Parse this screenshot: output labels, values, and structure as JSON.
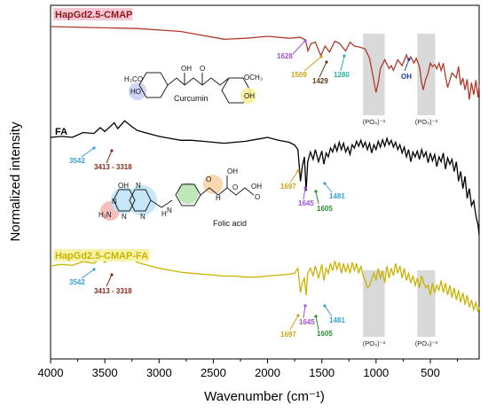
{
  "chart_data": {
    "type": "line",
    "xlabel": "Wavenumber (cm⁻¹)",
    "ylabel": "Normalized intensity",
    "xlim": [
      4000,
      50
    ],
    "x_reversed": true,
    "x_ticks": [
      "4000",
      "3500",
      "3000",
      "2500",
      "2000",
      "1500",
      "1000",
      "500"
    ],
    "grid": false,
    "series": [
      {
        "name": "HapGd2.5-CMAP",
        "color": "#b03a2e",
        "label_bg": "#f7c7d6",
        "x": [
          4000,
          3600,
          3200,
          2800,
          2400,
          2200,
          2000,
          1800,
          1700,
          1650,
          1628,
          1600,
          1560,
          1509,
          1470,
          1429,
          1380,
          1340,
          1280,
          1240,
          1200,
          1150,
          1100,
          1060,
          1030,
          1000,
          980,
          960,
          920,
          880,
          860,
          840,
          800,
          760,
          720,
          700,
          680,
          650,
          630,
          600,
          580,
          565,
          545,
          520,
          500,
          480,
          460,
          440,
          420,
          400,
          380,
          360,
          340,
          300,
          260,
          240,
          220,
          200,
          180,
          160,
          140,
          120,
          100,
          80,
          60,
          50
        ],
        "y": [
          0.1,
          0.12,
          0.14,
          0.2,
          0.36,
          0.34,
          0.3,
          0.34,
          0.32,
          0.37,
          0.6,
          0.45,
          0.42,
          0.7,
          0.5,
          0.62,
          0.4,
          0.44,
          0.6,
          0.42,
          0.5,
          0.52,
          0.56,
          0.75,
          1.1,
          1.45,
          1.25,
          0.96,
          0.78,
          0.96,
          0.9,
          1.0,
          0.78,
          0.9,
          0.68,
          0.8,
          0.72,
          0.85,
          0.75,
          0.92,
          1.25,
          1.4,
          1.2,
          1.05,
          0.85,
          0.92,
          0.88,
          0.97,
          0.85,
          1.0,
          0.85,
          1.12,
          1.35,
          1.05,
          1.15,
          0.92,
          1.3,
          1.15,
          1.4,
          1.18,
          1.6,
          1.25,
          1.5,
          1.2,
          1.55,
          1.3
        ]
      },
      {
        "name": "FA",
        "color": "#000000",
        "x": [
          4000,
          3900,
          3800,
          3700,
          3600,
          3542,
          3500,
          3413,
          3380,
          3318,
          3250,
          3200,
          3100,
          3000,
          2900,
          2800,
          2700,
          2600,
          2500,
          2400,
          2300,
          2200,
          2100,
          2000,
          1900,
          1800,
          1750,
          1720,
          1697,
          1680,
          1660,
          1645,
          1630,
          1605,
          1580,
          1560,
          1530,
          1500,
          1481,
          1460,
          1440,
          1420,
          1400,
          1380,
          1360,
          1340,
          1320,
          1300,
          1280,
          1260,
          1240,
          1220,
          1200,
          1180,
          1160,
          1140,
          1120,
          1100,
          1080,
          1060,
          1040,
          1020,
          1000,
          980,
          960,
          940,
          920,
          900,
          880,
          860,
          840,
          820,
          800,
          780,
          760,
          740,
          720,
          700,
          680,
          660,
          640,
          620,
          600,
          580,
          560,
          540,
          520,
          500,
          480,
          460,
          440,
          420,
          400,
          380,
          360,
          340,
          320,
          300,
          280,
          260,
          240,
          220,
          200,
          180,
          160,
          140,
          120,
          100,
          80,
          60,
          50
        ],
        "y": [
          4.3,
          4.28,
          4.3,
          4.2,
          4.22,
          4.1,
          4.18,
          4.0,
          4.12,
          3.96,
          4.08,
          4.16,
          4.22,
          4.28,
          4.32,
          4.36,
          4.36,
          4.38,
          4.4,
          4.42,
          4.4,
          4.38,
          4.34,
          4.3,
          4.36,
          4.4,
          4.46,
          4.55,
          5.2,
          4.9,
          4.7,
          5.4,
          4.8,
          4.6,
          4.75,
          4.55,
          4.8,
          4.58,
          4.85,
          4.62,
          4.7,
          4.52,
          4.6,
          4.45,
          4.58,
          4.4,
          4.55,
          4.42,
          4.6,
          4.5,
          4.65,
          4.45,
          4.52,
          4.38,
          4.48,
          4.36,
          4.5,
          4.4,
          4.55,
          4.42,
          4.62,
          4.45,
          4.55,
          4.38,
          4.5,
          4.35,
          4.48,
          4.32,
          4.45,
          4.36,
          4.5,
          4.4,
          4.55,
          4.45,
          4.62,
          4.5,
          4.7,
          4.55,
          4.8,
          4.6,
          4.7,
          4.58,
          4.75,
          4.55,
          4.7,
          4.6,
          4.82,
          4.62,
          4.78,
          4.65,
          4.9,
          4.7,
          4.8,
          4.62,
          4.95,
          4.72,
          4.85,
          4.75,
          5.0,
          4.8,
          5.2,
          5.0,
          5.35,
          5.1,
          5.55,
          5.35,
          5.7,
          5.6,
          5.9,
          6.1,
          6.3
        ]
      },
      {
        "name": "HapGd2.5-CMAP-FA",
        "color": "#c8b400",
        "label_bg": "#f7f3a8",
        "x": [
          4000,
          3900,
          3800,
          3700,
          3600,
          3542,
          3500,
          3413,
          3380,
          3318,
          3250,
          3200,
          3100,
          3000,
          2900,
          2800,
          2700,
          2600,
          2500,
          2400,
          2300,
          2200,
          2100,
          2000,
          1900,
          1800,
          1750,
          1720,
          1697,
          1680,
          1660,
          1645,
          1630,
          1605,
          1580,
          1560,
          1530,
          1500,
          1481,
          1460,
          1440,
          1420,
          1400,
          1380,
          1360,
          1340,
          1320,
          1300,
          1280,
          1260,
          1240,
          1220,
          1200,
          1180,
          1160,
          1140,
          1120,
          1100,
          1080,
          1060,
          1040,
          1020,
          1000,
          980,
          960,
          940,
          920,
          900,
          880,
          860,
          840,
          820,
          800,
          780,
          760,
          740,
          720,
          700,
          680,
          660,
          640,
          620,
          600,
          580,
          560,
          540,
          520,
          500,
          480,
          460,
          440,
          420,
          400,
          380,
          360,
          340,
          320,
          300,
          280,
          260,
          240,
          220,
          200,
          180,
          160,
          140,
          120,
          100,
          80,
          60,
          50
        ],
        "y": [
          8.15,
          8.12,
          8.14,
          8.06,
          8.1,
          8.0,
          8.08,
          7.92,
          8.02,
          7.9,
          8.0,
          8.08,
          8.14,
          8.2,
          8.24,
          8.28,
          8.3,
          8.32,
          8.34,
          8.36,
          8.36,
          8.38,
          8.38,
          8.36,
          8.34,
          8.32,
          8.3,
          8.2,
          8.7,
          8.5,
          8.4,
          8.75,
          8.3,
          8.2,
          8.35,
          8.15,
          8.4,
          8.12,
          8.45,
          8.2,
          8.3,
          8.1,
          8.25,
          8.05,
          8.22,
          8.08,
          8.3,
          8.1,
          8.28,
          8.12,
          8.3,
          8.08,
          8.25,
          8.1,
          8.3,
          8.15,
          8.35,
          8.45,
          8.6,
          8.55,
          8.42,
          8.3,
          8.45,
          8.2,
          8.4,
          8.25,
          8.5,
          8.15,
          8.4,
          8.2,
          8.35,
          8.1,
          8.3,
          8.15,
          8.4,
          8.2,
          8.45,
          8.3,
          8.5,
          8.35,
          8.55,
          8.4,
          8.6,
          8.35,
          8.5,
          8.6,
          8.55,
          8.75,
          8.5,
          8.7,
          8.55,
          8.65,
          8.45,
          8.7,
          8.5,
          8.75,
          8.55,
          8.8,
          8.6,
          8.85,
          8.65,
          8.9,
          8.7,
          8.95,
          8.75,
          9.0,
          8.85,
          9.05,
          8.9,
          9.1,
          9.0
        ]
      }
    ],
    "phosphate_bands": [
      {
        "series": "HapGd2.5-CMAP",
        "from": 1120,
        "to": 920,
        "label": "(PO₄)⁻³"
      },
      {
        "series": "HapGd2.5-CMAP",
        "from": 620,
        "to": 455,
        "label": "(PO₄)⁻³"
      },
      {
        "series": "HapGd2.5-CMAP-FA",
        "from": 1120,
        "to": 920,
        "label": "(PO₄)⁻³"
      },
      {
        "series": "HapGd2.5-CMAP-FA",
        "from": 620,
        "to": 455,
        "label": "(PO₄)⁻³"
      }
    ],
    "annotations": [
      {
        "series": "HapGd2.5-CMAP",
        "text": "1628",
        "color": "#a34fd6"
      },
      {
        "series": "HapGd2.5-CMAP",
        "text": "1509",
        "color": "#d4a017"
      },
      {
        "series": "HapGd2.5-CMAP",
        "text": "1429",
        "color": "#5a3b1a"
      },
      {
        "series": "HapGd2.5-CMAP",
        "text": "1280",
        "color": "#2bb3a0"
      },
      {
        "series": "HapGd2.5-CMAP",
        "text": "OH",
        "color": "#1f3c9e"
      },
      {
        "series": "FA",
        "text": "3542",
        "color": "#3aa0d8"
      },
      {
        "series": "FA",
        "text": "3413 - 3318",
        "color": "#8b2a1e"
      },
      {
        "series": "FA",
        "text": "1697",
        "color": "#d4a017"
      },
      {
        "series": "FA",
        "text": "1645",
        "color": "#a34fd6"
      },
      {
        "series": "FA",
        "text": "1605",
        "color": "#2e8b2e"
      },
      {
        "series": "FA",
        "text": "1481",
        "color": "#3aa0d8"
      },
      {
        "series": "HapGd2.5-CMAP-FA",
        "text": "3542",
        "color": "#3aa0d8"
      },
      {
        "series": "HapGd2.5-CMAP-FA",
        "text": "3413 - 3318",
        "color": "#8b2a1e"
      },
      {
        "series": "HapGd2.5-CMAP-FA",
        "text": "1697",
        "color": "#d4a017"
      },
      {
        "series": "HapGd2.5-CMAP-FA",
        "text": "1645",
        "color": "#a34fd6"
      },
      {
        "series": "HapGd2.5-CMAP-FA",
        "text": "1605",
        "color": "#2e8b2e"
      },
      {
        "series": "HapGd2.5-CMAP-FA",
        "text": "1481",
        "color": "#3aa0d8"
      }
    ],
    "structures": [
      {
        "name": "Curcumin",
        "labels": [
          "H₃CO",
          "OH",
          "O",
          "OCH₃",
          "HO",
          "OH"
        ]
      },
      {
        "name": "Folic acid",
        "labels": [
          "OH",
          "N",
          "H₂N",
          "N",
          "N",
          "N",
          "H",
          "N",
          "O",
          "H",
          "OH",
          "O",
          "OH",
          "O"
        ]
      }
    ]
  }
}
